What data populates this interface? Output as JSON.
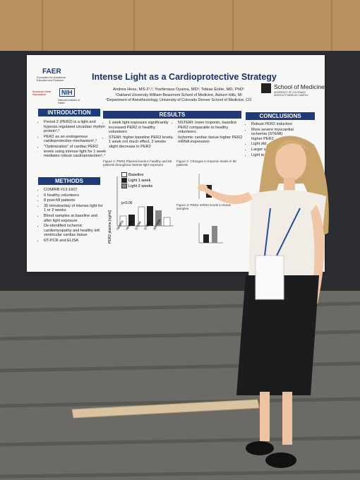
{
  "poster": {
    "logos": {
      "faer": "FAER",
      "faer_sub": "Foundation for Anesthesia Education and Research",
      "aha": "American Heart Association.",
      "nih": "NIH",
      "nih_sub": "National Institutes of Health",
      "cu": "School of Medicine",
      "cu_sub": "UNIVERSITY OF COLORADO ANSCHUTZ MEDICAL CAMPUS"
    },
    "title": "Intense Light as a Cardioprotective Strategy",
    "authors": "Andrea Hess, MS-2¹,²; Yoshimasa Oyama, MD²; Tobias Eckle, MD, PhD²",
    "affiliations": [
      "¹Oakland University William Beaumont School of Medicine, Auburn Hills, MI",
      "²Department of Anesthesiology, University of Colorado Denver School of Medicine, CO"
    ],
    "introduction": {
      "heading": "INTRODUCTION",
      "bullets": [
        "Period 2 (PER2) is a light and hypoxia regulated circadian rhythm protein¹,²",
        "PER2 as an endogenous cardioprotective mechanism¹,³",
        "\"Optimization\" of cardiac PER2 levels using intense light for 1 week mediates robust cardioprotection¹,⁴"
      ]
    },
    "methods": {
      "heading": "METHODS",
      "bullets": [
        "COMIRB #13-1607",
        "6 healthy volunteers",
        "8 post-MI patients",
        "30 minutes/day of intense light for 1 or 2 weeks",
        "Blood samples at baseline and after light exposure",
        "De-identified ischemic cardiomyopathy and healthy left ventricular cardiac tissue",
        "RT-PCR and ELISA"
      ]
    },
    "results": {
      "heading": "RESULTS",
      "left": [
        "1 week light exposure significantly increased PER2 in healthy volunteers",
        "STEMI: higher baseline PER2 levels, 1 week not much effect, 2 weeks slight decrease in PER2"
      ],
      "right": [
        "NSTEMI: lower troponin, baseline PER2 comparable to healthy volunteers",
        "Ischemic cardiac tissue higher PER2 mRNA expression"
      ],
      "figure1": "Figure 1: PER2 Plasma levels in healthy and MI patients throughout intense light exposure",
      "figure2": "Figure 2: Changes in troponin levels in MI patients",
      "figure3": "Figure 3: PER2 mRNA levels in tissue samples",
      "legend": [
        "Baseline",
        "Light 1 week",
        "Light 2 weeks"
      ],
      "p_value": "p<0.05",
      "y_label": "PER2 plasma [ng/ml]",
      "x_labels": [
        "Healthy",
        "Healthy",
        "STEMI",
        "STEMI",
        "NSTEMI"
      ]
    },
    "conclusions": {
      "heading": "CONCLUSIONS",
      "bullets": [
        "Robust PER2 induction",
        "More severe myocardial ischemia (STEMI) higher PER2",
        "Light did",
        "Larger sam",
        "Light to r"
      ]
    }
  }
}
